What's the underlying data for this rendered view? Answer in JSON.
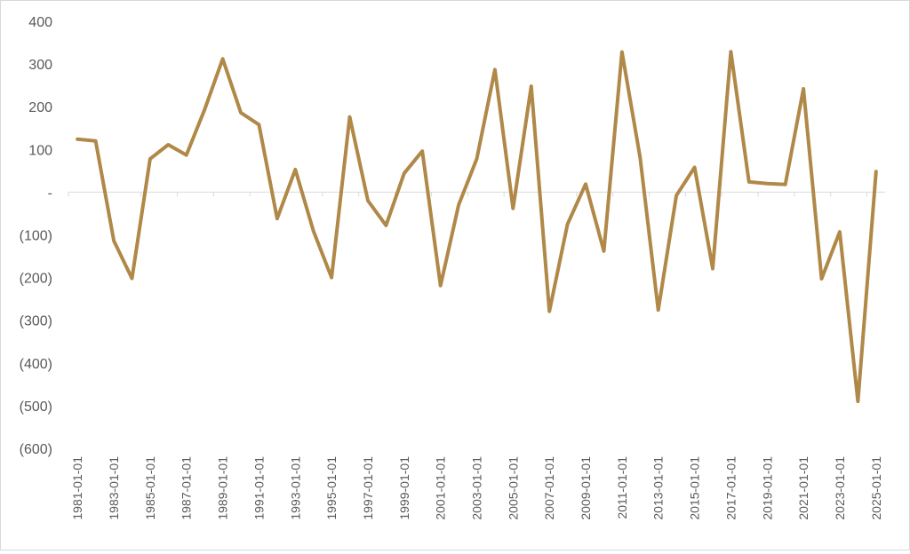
{
  "chart_data": {
    "type": "line",
    "title": "",
    "xlabel": "",
    "ylabel": "",
    "ylim": [
      -600,
      400
    ],
    "yticks": [
      400,
      300,
      200,
      100,
      0,
      -100,
      -200,
      -300,
      -400,
      -500,
      -600
    ],
    "ytick_labels": [
      "400",
      "300",
      "200",
      "100",
      "-",
      "(100)",
      "(200)",
      "(300)",
      "(400)",
      "(500)",
      "(600)"
    ],
    "x": [
      "1981-01-01",
      "1982-01-01",
      "1983-01-01",
      "1984-01-01",
      "1985-01-01",
      "1986-01-01",
      "1987-01-01",
      "1988-01-01",
      "1989-01-01",
      "1990-01-01",
      "1991-01-01",
      "1992-01-01",
      "1993-01-01",
      "1994-01-01",
      "1995-01-01",
      "1996-01-01",
      "1997-01-01",
      "1998-01-01",
      "1999-01-01",
      "2000-01-01",
      "2001-01-01",
      "2002-01-01",
      "2003-01-01",
      "2004-01-01",
      "2005-01-01",
      "2006-01-01",
      "2007-01-01",
      "2008-01-01",
      "2009-01-01",
      "2010-01-01",
      "2011-01-01",
      "2012-01-01",
      "2013-01-01",
      "2014-01-01",
      "2015-01-01",
      "2016-01-01",
      "2017-01-01",
      "2018-01-01",
      "2019-01-01",
      "2020-01-01",
      "2021-01-01",
      "2022-01-01",
      "2023-01-01",
      "2024-01-01",
      "2025-01-01"
    ],
    "xtick_labels": [
      "1981-01-01",
      "1983-01-01",
      "1985-01-01",
      "1987-01-01",
      "1989-01-01",
      "1991-01-01",
      "1993-01-01",
      "1995-01-01",
      "1997-01-01",
      "1999-01-01",
      "2001-01-01",
      "2003-01-01",
      "2005-01-01",
      "2007-01-01",
      "2009-01-01",
      "2011-01-01",
      "2013-01-01",
      "2015-01-01",
      "2017-01-01",
      "2019-01-01",
      "2021-01-01",
      "2023-01-01",
      "2025-01-01"
    ],
    "series": [
      {
        "name": "",
        "color": "#B08848",
        "values": [
          124,
          120,
          -114,
          -202,
          78,
          111,
          87,
          193,
          312,
          186,
          158,
          -62,
          53,
          -91,
          -200,
          176,
          -20,
          -78,
          44,
          96,
          -219,
          -30,
          78,
          287,
          -38,
          248,
          -279,
          -75,
          19,
          -138,
          328,
          81,
          -276,
          -8,
          58,
          -179,
          329,
          24,
          20,
          18,
          242,
          -203,
          -93,
          -490,
          48
        ]
      }
    ],
    "grid": false,
    "legend": "none"
  }
}
